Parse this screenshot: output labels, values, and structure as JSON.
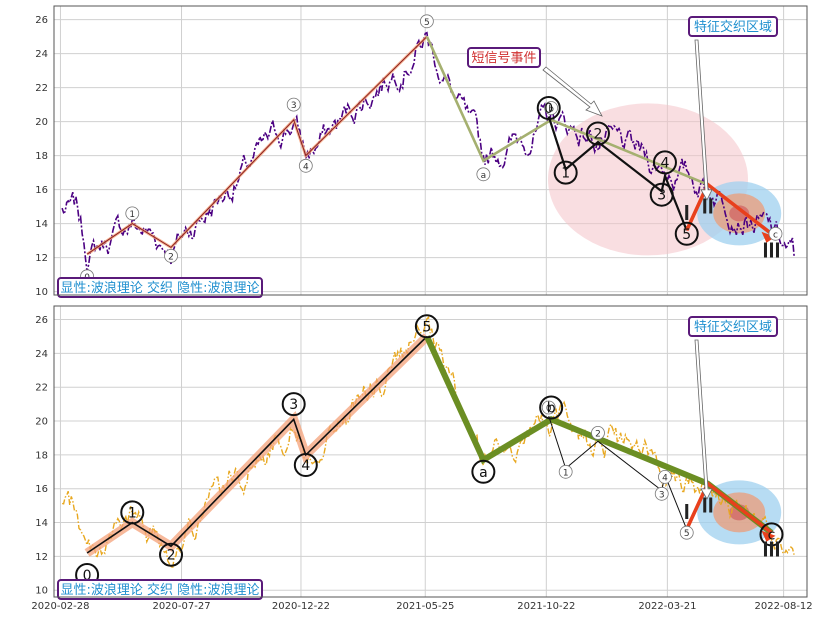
{
  "chart_data": [
    {
      "type": "line",
      "panel": "top",
      "ylim": [
        9.8,
        26.8
      ],
      "yticks": [
        10,
        12,
        14,
        16,
        18,
        20,
        22,
        24,
        26
      ],
      "price_color": "#4b0082",
      "legend_box": {
        "text": "显性:波浪理论 交织 隐性:波浪理论",
        "text_color": "#1f8fcf",
        "border_color": "#5a1a7a"
      },
      "feature_box": {
        "text": "特征交织区域",
        "text_color": "#1f8fcf",
        "border_color": "#5a1a7a"
      },
      "signal_box": {
        "text": "短信号事件",
        "text_color": "#d03030",
        "border_color": "#5a1a7a"
      },
      "wave_small_labels": [
        {
          "label": "0",
          "date": "2020-04-01",
          "value": 10.9
        },
        {
          "label": "1",
          "date": "2020-05-27",
          "value": 14.6
        },
        {
          "label": "2",
          "date": "2020-07-14",
          "value": 12.1
        },
        {
          "label": "3",
          "date": "2020-12-13",
          "value": 21.0
        },
        {
          "label": "4",
          "date": "2020-12-28",
          "value": 17.4
        },
        {
          "label": "5",
          "date": "2021-05-27",
          "value": 25.9
        },
        {
          "label": "a",
          "date": "2021-08-05",
          "value": 16.9
        },
        {
          "label": "b",
          "date": "2021-10-28",
          "value": 20.8
        }
      ],
      "wave_big_labels": [
        {
          "label": "0",
          "date": "2021-10-25",
          "value": 20.8
        },
        {
          "label": "1",
          "date": "2021-11-15",
          "value": 17.0
        },
        {
          "label": "2",
          "date": "2021-12-25",
          "value": 19.3
        },
        {
          "label": "3",
          "date": "2022-03-14",
          "value": 15.7
        },
        {
          "label": "4",
          "date": "2022-03-18",
          "value": 17.6
        },
        {
          "label": "5",
          "date": "2022-04-14",
          "value": 13.4
        }
      ],
      "roman_labels": [
        {
          "label": "I",
          "date": "2022-04-14",
          "value": 14.2
        },
        {
          "label": "II",
          "date": "2022-05-10",
          "value": 14.6
        },
        {
          "label": "III",
          "date": "2022-07-28",
          "value": 12.0
        }
      ],
      "trailing_small_label": {
        "label": "c",
        "date": "2022-07-28",
        "value": 13.4
      }
    },
    {
      "type": "line",
      "panel": "bottom",
      "ylim": [
        9.6,
        26.8
      ],
      "yticks": [
        10,
        12,
        14,
        16,
        18,
        20,
        22,
        24,
        26
      ],
      "price_color": "#e8a820",
      "legend_box": {
        "text": "显性:波浪理论 交织 隐性:波浪理论",
        "text_color": "#1f8fcf",
        "border_color": "#5a1a7a"
      },
      "feature_box": {
        "text": "特征交织区域",
        "text_color": "#1f8fcf",
        "border_color": "#5a1a7a"
      },
      "wave_big_labels": [
        {
          "label": "0",
          "date": "2020-04-01",
          "value": 10.9
        },
        {
          "label": "1",
          "date": "2020-05-27",
          "value": 14.6
        },
        {
          "label": "2",
          "date": "2020-07-14",
          "value": 12.1
        },
        {
          "label": "3",
          "date": "2020-12-13",
          "value": 21.0
        },
        {
          "label": "4",
          "date": "2020-12-28",
          "value": 17.4
        },
        {
          "label": "5",
          "date": "2021-05-27",
          "value": 25.6
        },
        {
          "label": "a",
          "date": "2021-08-05",
          "value": 17.0
        },
        {
          "label": "b",
          "date": "2021-10-28",
          "value": 20.8
        },
        {
          "label": "c",
          "date": "2022-07-28",
          "value": 13.3
        }
      ],
      "wave_small_labels": [
        {
          "label": "0",
          "date": "2021-10-25",
          "value": 20.8
        },
        {
          "label": "1",
          "date": "2021-11-15",
          "value": 17.0
        },
        {
          "label": "2",
          "date": "2021-12-25",
          "value": 19.3
        },
        {
          "label": "3",
          "date": "2022-03-14",
          "value": 15.7
        },
        {
          "label": "4",
          "date": "2022-03-18",
          "value": 16.7
        },
        {
          "label": "5",
          "date": "2022-04-14",
          "value": 13.4
        }
      ],
      "roman_labels": [
        {
          "label": "I",
          "date": "2022-04-14",
          "value": 14.2
        },
        {
          "label": "II",
          "date": "2022-05-10",
          "value": 14.6
        },
        {
          "label": "III",
          "date": "2022-07-28",
          "value": 12.0
        }
      ]
    }
  ],
  "x_axis": {
    "range": [
      "2020-02-20",
      "2022-09-10"
    ],
    "ticks": [
      {
        "date": "2020-02-28",
        "label": "2020-02-28"
      },
      {
        "date": "2020-07-27",
        "label": "2020-07-27"
      },
      {
        "date": "2020-12-22",
        "label": "2020-12-22"
      },
      {
        "date": "2021-05-25",
        "label": "2021-05-25"
      },
      {
        "date": "2021-10-22",
        "label": "2021-10-22"
      },
      {
        "date": "2022-03-21",
        "label": "2022-03-21"
      },
      {
        "date": "2022-08-12",
        "label": "2022-08-12"
      }
    ]
  },
  "waves": {
    "primary": [
      {
        "date": "2020-04-01",
        "value": 12.2
      },
      {
        "date": "2020-05-27",
        "value": 14.0
      },
      {
        "date": "2020-07-14",
        "value": 12.6
      },
      {
        "date": "2020-12-13",
        "value": 20.1
      },
      {
        "date": "2020-12-28",
        "value": 18.0
      },
      {
        "date": "2021-05-27",
        "value": 25.0
      },
      {
        "date": "2021-08-05",
        "value": 17.7
      },
      {
        "date": "2021-10-28",
        "value": 20.1
      },
      {
        "date": "2022-05-10",
        "value": 16.3
      },
      {
        "date": "2022-07-28",
        "value": 13.4
      }
    ],
    "secondary": [
      {
        "date": "2021-10-25",
        "value": 20.3
      },
      {
        "date": "2021-11-15",
        "value": 17.2
      },
      {
        "date": "2021-12-25",
        "value": 18.8
      },
      {
        "date": "2022-03-14",
        "value": 15.9
      },
      {
        "date": "2022-03-18",
        "value": 16.8
      },
      {
        "date": "2022-04-14",
        "value": 13.6
      },
      {
        "date": "2022-05-10",
        "value": 16.3
      },
      {
        "date": "2022-07-28",
        "value": 13.4
      }
    ]
  },
  "colors": {
    "grid": "#d0d0d0",
    "frame": "#555555",
    "primary_thin": "#8b2020",
    "primary_glow": "#f4a27a",
    "secondary_olive": "#a5b070",
    "olive_thick": "#6b8e23",
    "red_arrow": "#e8401c",
    "ellipse_pink": "#f4c2c8",
    "ellipse_blue": "#9fd0ef",
    "ellipse_orange": "#e8a080"
  }
}
